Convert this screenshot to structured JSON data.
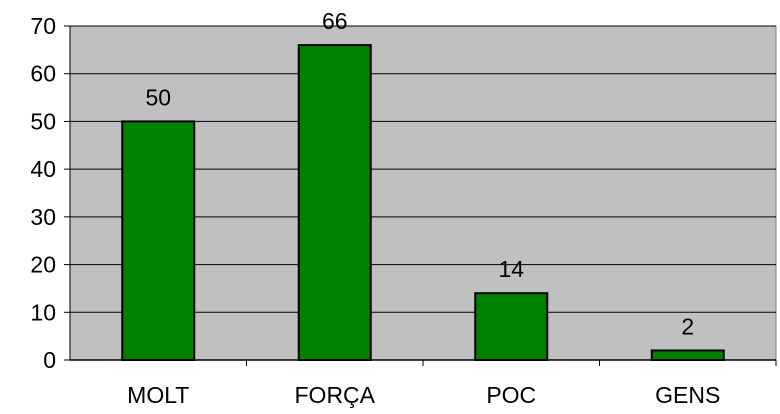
{
  "chart_data": {
    "type": "bar",
    "categories": [
      "MOLT",
      "FORÇA",
      "POC",
      "GENS"
    ],
    "values": [
      50,
      66,
      14,
      2
    ],
    "data_labels": [
      "50",
      "66",
      "14",
      "2"
    ],
    "ylim": [
      0,
      70
    ],
    "yticks": [
      0,
      10,
      20,
      30,
      40,
      50,
      60,
      70
    ],
    "ytick_labels": [
      "0",
      "10",
      "20",
      "30",
      "40",
      "50",
      "60",
      "70"
    ],
    "grid": true,
    "legend": "none",
    "colors": {
      "bar_fill": "#008000",
      "bar_stroke": "#000000",
      "plot_background": "#c0c0c0",
      "gridline": "#000000"
    }
  }
}
